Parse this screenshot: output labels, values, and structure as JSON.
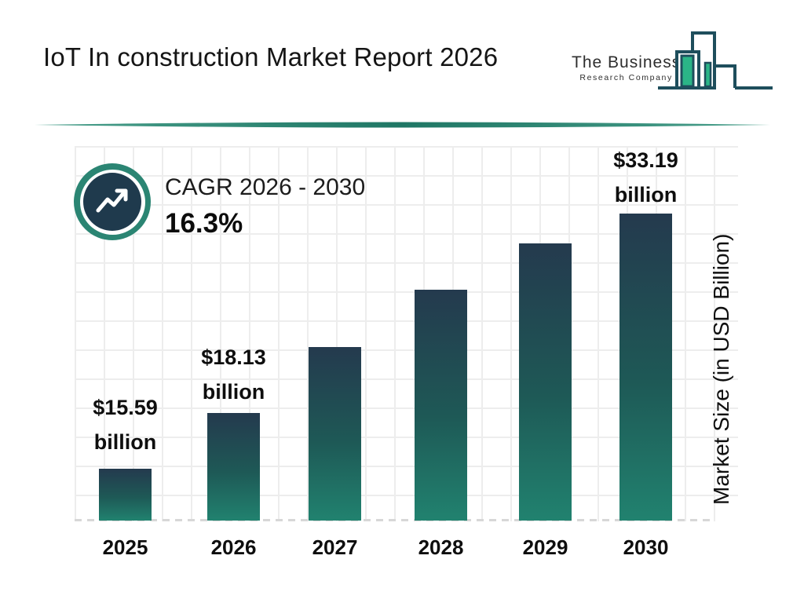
{
  "header": {
    "title": "IoT In construction Market Report 2026",
    "logo": {
      "line1": "The Business",
      "line2": "Research Company"
    }
  },
  "cagr": {
    "label": "CAGR 2026 - 2030",
    "value": "16.3%"
  },
  "chart_data": {
    "type": "bar",
    "title": "IoT In construction Market Report 2026",
    "categories": [
      "2025",
      "2026",
      "2027",
      "2028",
      "2029",
      "2030"
    ],
    "values": [
      15.59,
      18.13,
      21.09,
      24.53,
      28.53,
      33.19
    ],
    "unit": "USD Billion",
    "ylabel": "Market Size (in USD Billion)",
    "xlabel": "",
    "grid": "on",
    "legend": "none",
    "bar_labels": [
      {
        "index": 0,
        "lines": [
          "$15.59",
          "billion"
        ]
      },
      {
        "index": 1,
        "lines": [
          "$18.13",
          "billion"
        ]
      },
      {
        "index": 5,
        "lines": [
          "$33.19",
          "billion"
        ]
      }
    ],
    "colors": {
      "bar_gradient_top": "#243a4e",
      "bar_gradient_bottom": "#21826f",
      "grid_line": "#ededed",
      "baseline_dash": "#d7d7d7",
      "badge_ring_green": "#2b8573",
      "badge_core_navy": "#1f3a4d",
      "divider_teal": "#26816d",
      "logo_outline": "#1e4e5c",
      "logo_green": "#2bb587",
      "text": "#0e0e0e"
    }
  }
}
